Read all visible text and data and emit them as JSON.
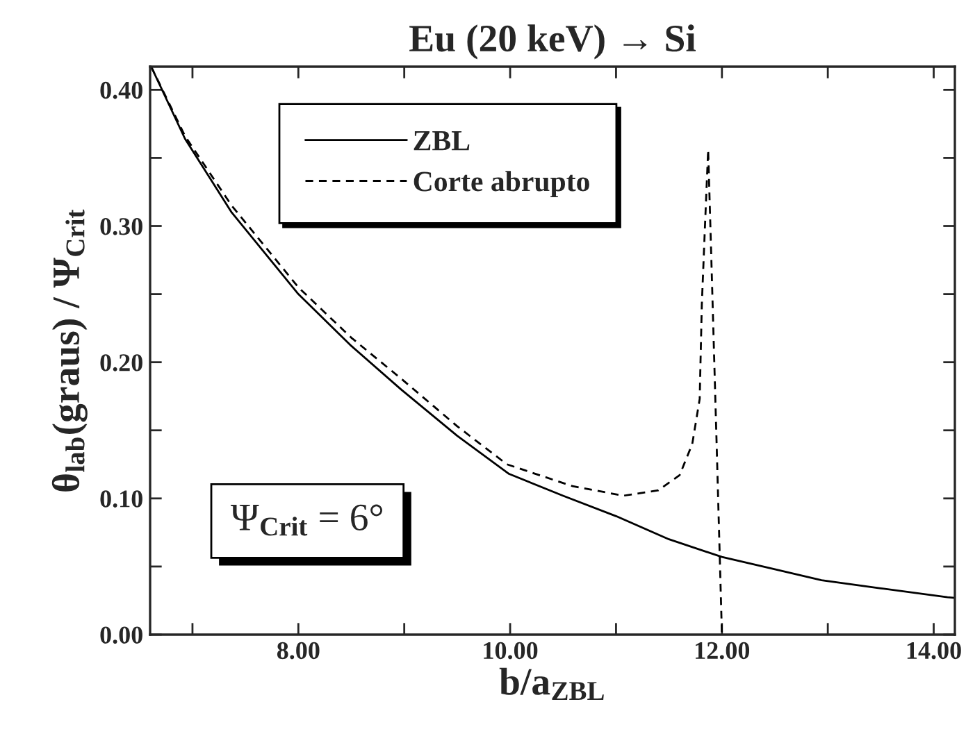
{
  "chart_data": {
    "type": "line",
    "title": "Eu (20 keV) → Si",
    "xlabel": "b/a$_{ZBL}$",
    "ylabel": "θ$_{lab}$(graus) / Ψ$_{Crit}$",
    "series": [
      {
        "name": "ZBL",
        "color": "#000000",
        "line_style": "solid",
        "x": [
          6.61,
          6.93,
          7.37,
          8.0,
          8.5,
          8.97,
          9.5,
          9.99,
          10.5,
          11.0,
          11.5,
          12.0,
          12.5,
          12.94,
          13.5,
          14.13,
          14.2
        ],
        "values": [
          0.417,
          0.364,
          0.31,
          0.25,
          0.212,
          0.18,
          0.146,
          0.118,
          0.102,
          0.087,
          0.07,
          0.057,
          0.048,
          0.04,
          0.034,
          0.0275,
          0.027
        ]
      },
      {
        "name": "Corte abrupto",
        "color": "#000000",
        "line_style": "dashed",
        "x": [
          6.61,
          6.93,
          7.37,
          8.0,
          8.5,
          8.97,
          9.5,
          9.97,
          10.59,
          11.07,
          11.4,
          11.6,
          11.72,
          11.79,
          11.81,
          11.84,
          11.87,
          11.9,
          11.95,
          12.0
        ],
        "values": [
          0.417,
          0.366,
          0.315,
          0.255,
          0.218,
          0.188,
          0.153,
          0.125,
          0.109,
          0.102,
          0.106,
          0.117,
          0.14,
          0.173,
          0.242,
          0.3,
          0.356,
          0.276,
          0.14,
          0.0
        ]
      }
    ],
    "xlim": [
      6.6,
      14.2
    ],
    "ylim": [
      0,
      0.417
    ],
    "xticks": [
      {
        "value": 7,
        "label": null
      },
      {
        "value": 8,
        "label": "8.00"
      },
      {
        "value": 9,
        "label": null
      },
      {
        "value": 10,
        "label": "10.00"
      },
      {
        "value": 11,
        "label": null
      },
      {
        "value": 12,
        "label": "12.00"
      },
      {
        "value": 13,
        "label": null
      },
      {
        "value": 14,
        "label": "14.00"
      }
    ],
    "yticks": [
      {
        "value": 0,
        "label": "0.00"
      },
      {
        "value": 0.05,
        "label": null
      },
      {
        "value": 0.1,
        "label": "0.10"
      },
      {
        "value": 0.15,
        "label": null
      },
      {
        "value": 0.2,
        "label": "0.20"
      },
      {
        "value": 0.25,
        "label": null
      },
      {
        "value": 0.3,
        "label": "0.30"
      },
      {
        "value": 0.35,
        "label": null
      },
      {
        "value": 0.4,
        "label": "0.40"
      }
    ],
    "annotations": [
      "Ψ$_{Crit}$ = 6°"
    ],
    "legend": "top",
    "grid": false
  }
}
